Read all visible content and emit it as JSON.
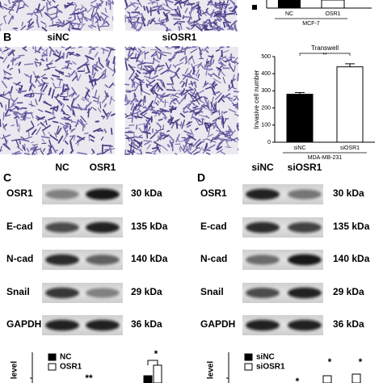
{
  "panel_a": {
    "categories": [
      "NC",
      "OSR1"
    ],
    "group": "MCF-7"
  },
  "panel_b": {
    "label": "B",
    "images": [
      "siNC",
      "siOSR1"
    ]
  },
  "chart_data": {
    "type": "bar",
    "title": "Transwell",
    "y_label": "Invasive cell number",
    "categories": [
      "siNC",
      "siOSR1"
    ],
    "group_label": "MDA-MB-231",
    "values": [
      280,
      440
    ],
    "errors": [
      10,
      18
    ],
    "colors": [
      "#000000",
      "#ffffff"
    ],
    "ylim": [
      0,
      500
    ],
    "yticks": [
      0,
      100,
      200,
      300,
      400,
      500
    ],
    "significance": "**"
  },
  "panel_c": {
    "label": "C",
    "lanes": [
      "NC",
      "OSR1"
    ],
    "proteins": [
      {
        "name": "OSR1",
        "size": "30 kDa"
      },
      {
        "name": "E-cad",
        "size": "135 kDa"
      },
      {
        "name": "N-cad",
        "size": "140 kDa"
      },
      {
        "name": "Snail",
        "size": "29 kDa"
      },
      {
        "name": "GAPDH",
        "size": "36 kDa"
      }
    ]
  },
  "panel_d": {
    "label": "D",
    "lanes": [
      "siNC",
      "siOSR1"
    ],
    "proteins": [
      {
        "name": "OSR1",
        "size": "30 kDa"
      },
      {
        "name": "E-cad",
        "size": "135 kDa"
      },
      {
        "name": "N-cad",
        "size": "140 kDa"
      },
      {
        "name": "Snail",
        "size": "29 kDa"
      },
      {
        "name": "GAPDH",
        "size": "36 kDa"
      }
    ]
  },
  "bottom_c": {
    "y_label": "level",
    "legend": [
      "NC",
      "OSR1"
    ],
    "annotations": [
      "**",
      "*"
    ]
  },
  "bottom_d": {
    "y_label": "level",
    "legend": [
      "siNC",
      "siOSR1"
    ],
    "annotations": [
      "*",
      "*",
      "*"
    ]
  }
}
